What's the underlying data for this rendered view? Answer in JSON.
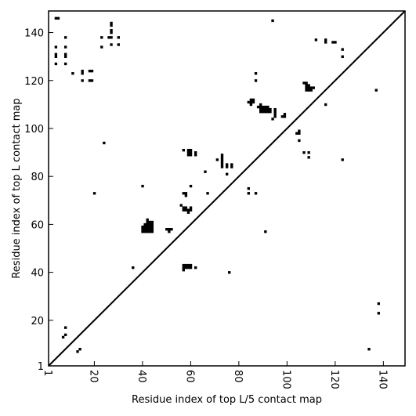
{
  "chart_data": {
    "type": "heatmap",
    "title": "",
    "xlabel": "Residue index of top L/5 contact map",
    "ylabel": "Residue index of top L contact map",
    "xlim": [
      1,
      149
    ],
    "ylim": [
      1,
      149
    ],
    "xticks": [
      1,
      20,
      40,
      60,
      80,
      100,
      120,
      140
    ],
    "yticks": [
      1,
      20,
      40,
      60,
      80,
      100,
      120,
      140
    ],
    "xtick_labels": [
      "1",
      "20",
      "40",
      "60",
      "80",
      "100",
      "120",
      "140"
    ],
    "ytick_labels": [
      "1",
      "20",
      "40",
      "60",
      "80",
      "100",
      "120",
      "140"
    ],
    "xtick_rotation": -90,
    "diagonal": true,
    "grid": false,
    "colors": {
      "contact": "#000000",
      "background": "#ffffff",
      "frame": "#000000"
    },
    "contacts_upper": [
      [
        4,
        146
      ],
      [
        5,
        146
      ],
      [
        4,
        134
      ],
      [
        4,
        131
      ],
      [
        4,
        130
      ],
      [
        4,
        127
      ],
      [
        8,
        138
      ],
      [
        8,
        134
      ],
      [
        8,
        131
      ],
      [
        8,
        130
      ],
      [
        8,
        127
      ],
      [
        11,
        123
      ],
      [
        15,
        124
      ],
      [
        15,
        123
      ],
      [
        15,
        120
      ],
      [
        18,
        124
      ],
      [
        19,
        124
      ],
      [
        18,
        120
      ],
      [
        19,
        120
      ],
      [
        23,
        138
      ],
      [
        23,
        134
      ],
      [
        27,
        144
      ],
      [
        27,
        143
      ],
      [
        27,
        141
      ],
      [
        27,
        140
      ],
      [
        26,
        138
      ],
      [
        27,
        138
      ],
      [
        27,
        135
      ],
      [
        30,
        138
      ],
      [
        30,
        135
      ],
      [
        24,
        94
      ],
      [
        20,
        73
      ],
      [
        36,
        42
      ],
      [
        40,
        76
      ],
      [
        40,
        59
      ],
      [
        41,
        59
      ],
      [
        42,
        59
      ],
      [
        43,
        59
      ],
      [
        44,
        59
      ],
      [
        40,
        58
      ],
      [
        41,
        58
      ],
      [
        42,
        58
      ],
      [
        43,
        58
      ],
      [
        44,
        58
      ],
      [
        40,
        57
      ],
      [
        41,
        57
      ],
      [
        42,
        57
      ],
      [
        43,
        57
      ],
      [
        44,
        57
      ],
      [
        42,
        62
      ],
      [
        42,
        61
      ],
      [
        43,
        61
      ],
      [
        44,
        61
      ],
      [
        42,
        60
      ],
      [
        43,
        60
      ],
      [
        44,
        60
      ],
      [
        41,
        60
      ],
      [
        50,
        58
      ],
      [
        51,
        58
      ],
      [
        52,
        58
      ],
      [
        51,
        57
      ],
      [
        56,
        68
      ],
      [
        57,
        73
      ],
      [
        58,
        73
      ],
      [
        58,
        72
      ],
      [
        57,
        67
      ],
      [
        58,
        67
      ],
      [
        57,
        66
      ],
      [
        58,
        66
      ],
      [
        59,
        66
      ],
      [
        59,
        65
      ],
      [
        60,
        66
      ],
      [
        60,
        67
      ],
      [
        57,
        43
      ],
      [
        58,
        43
      ],
      [
        59,
        43
      ],
      [
        60,
        43
      ],
      [
        57,
        42
      ],
      [
        58,
        42
      ],
      [
        59,
        42
      ],
      [
        60,
        42
      ],
      [
        57,
        41
      ],
      [
        62,
        42
      ],
      [
        57,
        91
      ],
      [
        59,
        91
      ],
      [
        60,
        91
      ],
      [
        59,
        90
      ],
      [
        60,
        90
      ],
      [
        59,
        89
      ],
      [
        60,
        89
      ],
      [
        62,
        90
      ],
      [
        62,
        89
      ],
      [
        60,
        76
      ],
      [
        66,
        82
      ],
      [
        67,
        73
      ],
      [
        71,
        87
      ],
      [
        73,
        89
      ],
      [
        73,
        88
      ],
      [
        73,
        87
      ],
      [
        73,
        86
      ],
      [
        73,
        85
      ],
      [
        73,
        84
      ],
      [
        75,
        85
      ],
      [
        75,
        84
      ],
      [
        77,
        85
      ],
      [
        77,
        84
      ],
      [
        75,
        81
      ],
      [
        76,
        40
      ],
      [
        84,
        75
      ],
      [
        84,
        73
      ],
      [
        87,
        73
      ],
      [
        84,
        111
      ],
      [
        85,
        112
      ],
      [
        86,
        112
      ],
      [
        85,
        111
      ],
      [
        86,
        111
      ],
      [
        85,
        110
      ],
      [
        87,
        123
      ],
      [
        87,
        120
      ],
      [
        88,
        109
      ],
      [
        89,
        109
      ],
      [
        90,
        109
      ],
      [
        91,
        109
      ],
      [
        92,
        109
      ],
      [
        89,
        110
      ],
      [
        89,
        108
      ],
      [
        90,
        108
      ],
      [
        91,
        108
      ],
      [
        92,
        108
      ],
      [
        93,
        108
      ],
      [
        89,
        107
      ],
      [
        90,
        107
      ],
      [
        91,
        107
      ],
      [
        92,
        107
      ],
      [
        93,
        107
      ],
      [
        94,
        104
      ],
      [
        95,
        108
      ],
      [
        95,
        107
      ],
      [
        95,
        106
      ],
      [
        95,
        105
      ],
      [
        98,
        105
      ],
      [
        99,
        106
      ],
      [
        99,
        105
      ],
      [
        91,
        57
      ],
      [
        94,
        145
      ],
      [
        104,
        98
      ],
      [
        105,
        99
      ],
      [
        105,
        98
      ],
      [
        105,
        95
      ],
      [
        107,
        90
      ],
      [
        109,
        90
      ],
      [
        109,
        88
      ],
      [
        107,
        119
      ],
      [
        108,
        119
      ],
      [
        108,
        118
      ],
      [
        109,
        118
      ],
      [
        108,
        117
      ],
      [
        109,
        117
      ],
      [
        110,
        117
      ],
      [
        111,
        117
      ],
      [
        108,
        116
      ],
      [
        109,
        116
      ],
      [
        110,
        116
      ],
      [
        112,
        137
      ],
      [
        116,
        137
      ],
      [
        116,
        136
      ],
      [
        119,
        136
      ],
      [
        120,
        136
      ],
      [
        116,
        110
      ],
      [
        123,
        133
      ],
      [
        123,
        130
      ],
      [
        123,
        87
      ],
      [
        137,
        116
      ]
    ],
    "contacts_lower": [
      [
        8,
        17
      ],
      [
        8,
        14
      ],
      [
        7,
        13
      ],
      [
        13,
        7
      ],
      [
        14,
        8
      ],
      [
        134,
        8
      ],
      [
        138,
        27
      ],
      [
        138,
        23
      ]
    ]
  }
}
